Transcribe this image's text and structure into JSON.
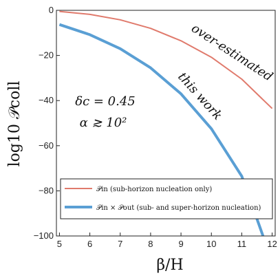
{
  "chart_data": {
    "type": "line",
    "xlabel": "β/H",
    "ylabel": "log10 𝒫coll",
    "xlim": [
      4.9,
      12.1
    ],
    "ylim": [
      -100,
      0
    ],
    "x_ticks": [
      5,
      6,
      7,
      8,
      9,
      10,
      11,
      12
    ],
    "y_ticks": [
      0,
      -20,
      -40,
      -60,
      -80,
      -100
    ],
    "grid": false,
    "legend_position": "bottom",
    "series": [
      {
        "name": "𝒫in (sub-horizon nucleation only)",
        "label_on_plot": "over-estimated",
        "color": "#e07a6c",
        "x": [
          5,
          6,
          7,
          8,
          9,
          10,
          11,
          12
        ],
        "y": [
          -0.5,
          -1.8,
          -4.2,
          -8.0,
          -13.5,
          -20.8,
          -30.5,
          -43.5
        ]
      },
      {
        "name": "𝒫in × 𝒫out (sub- and super-horizon nucleation)",
        "label_on_plot": "this work",
        "color": "#5a9fd4",
        "x": [
          5,
          6,
          7,
          8,
          9,
          10,
          11,
          11.7
        ],
        "y": [
          -6.3,
          -10.8,
          -17.0,
          -25.5,
          -37.0,
          -52.5,
          -73.5,
          -100
        ]
      }
    ],
    "annotations": [
      "δc = 0.45",
      "α ≳ 10²"
    ]
  }
}
